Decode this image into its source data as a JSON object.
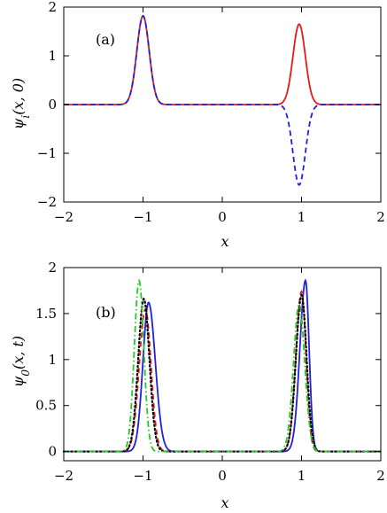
{
  "chart_data": [
    {
      "type": "line",
      "panel_label": "(a)",
      "xlabel": "x",
      "ylabel": "ψ_i(x, 0)",
      "xlim": [
        -2,
        2
      ],
      "ylim": [
        -2,
        2
      ],
      "xticks": [
        "−2",
        "−1",
        "0",
        "1",
        "2"
      ],
      "yticks": [
        "−2",
        "−1",
        "0",
        "1",
        "2"
      ],
      "xtick_values": [
        -2,
        -1,
        0,
        1,
        2
      ],
      "ytick_values": [
        -2,
        -1,
        0,
        1,
        2
      ],
      "grid": false,
      "legend": "none",
      "series": [
        {
          "color": "#e31a1c",
          "style": "solid",
          "peaks": [
            {
              "center": -1.0,
              "height": 1.82,
              "width": 0.11
            },
            {
              "center": 0.97,
              "height": 1.65,
              "width": 0.11
            }
          ]
        },
        {
          "color": "#1f1fdc",
          "style": "dashed",
          "peaks": [
            {
              "center": -1.0,
              "height": 1.82,
              "width": 0.11
            },
            {
              "center": 0.97,
              "height": -1.65,
              "width": 0.11
            }
          ]
        }
      ]
    },
    {
      "type": "line",
      "panel_label": "(b)",
      "xlabel": "x",
      "ylabel": "ψ_0(x, t)",
      "xlim": [
        -2,
        2
      ],
      "ylim": [
        -0.1,
        2
      ],
      "xticks": [
        "−2",
        "−1",
        "0",
        "1",
        "2"
      ],
      "yticks": [
        "0",
        "0.5",
        "1",
        "1.5",
        "2"
      ],
      "xtick_values": [
        -2,
        -1,
        0,
        1,
        2
      ],
      "ytick_values": [
        0,
        0.5,
        1,
        1.5,
        2
      ],
      "grid": false,
      "legend": "none",
      "series": [
        {
          "color": "#1f1fdc",
          "style": "solid",
          "peaks": [
            {
              "center": -0.93,
              "height": 1.62,
              "wl": 0.1,
              "wr": 0.12
            },
            {
              "center": 1.05,
              "height": 1.86,
              "wl": 0.1,
              "wr": 0.065
            }
          ]
        },
        {
          "color": "#e31a1c",
          "style": "dashed",
          "peaks": [
            {
              "center": -0.97,
              "height": 1.55,
              "wl": 0.11,
              "wr": 0.1
            },
            {
              "center": 1.0,
              "height": 1.74,
              "wl": 0.1,
              "wr": 0.08
            }
          ]
        },
        {
          "color": "#000000",
          "style": "dotted",
          "peaks": [
            {
              "center": -0.99,
              "height": 1.66,
              "wl": 0.1,
              "wr": 0.1
            },
            {
              "center": 1.0,
              "height": 1.7,
              "wl": 0.1,
              "wr": 0.09
            }
          ]
        },
        {
          "color": "#22cc22",
          "style": "dashdot",
          "peaks": [
            {
              "center": -1.05,
              "height": 1.86,
              "wl": 0.085,
              "wr": 0.085
            },
            {
              "center": 0.97,
              "height": 1.6,
              "wl": 0.1,
              "wr": 0.1
            }
          ]
        }
      ]
    }
  ]
}
